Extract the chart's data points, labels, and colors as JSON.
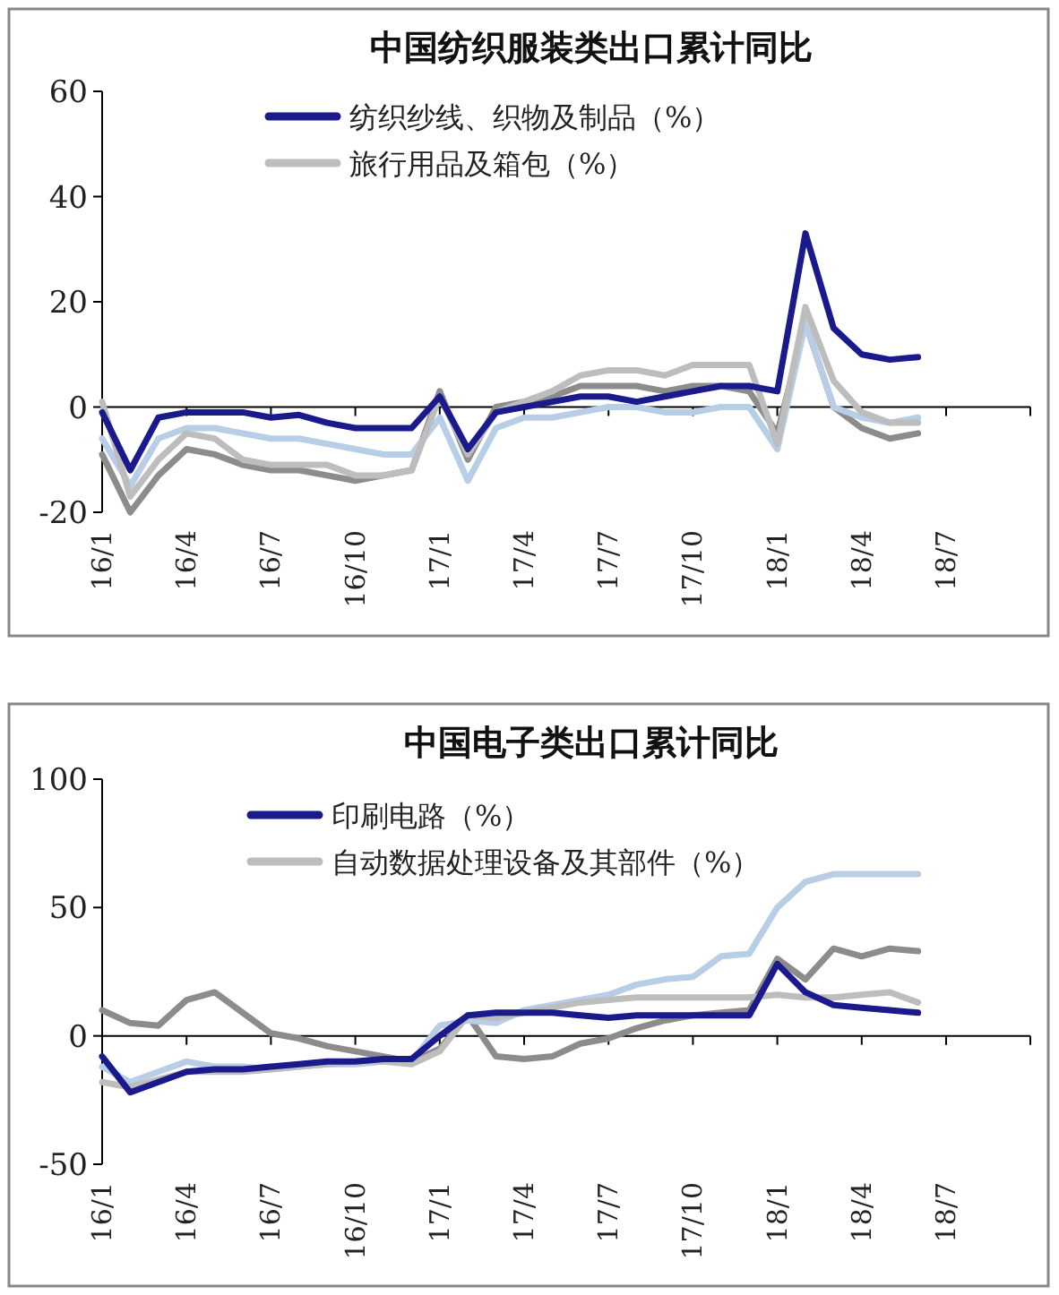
{
  "chart_data": [
    {
      "type": "line",
      "title": "中国纺织服装类出口累计同比",
      "categories": [
        "16/1",
        null,
        null,
        "16/4",
        null,
        null,
        "16/7",
        null,
        null,
        "16/10",
        null,
        null,
        "17/1",
        null,
        null,
        "17/4",
        null,
        null,
        "17/7",
        null,
        null,
        "17/10",
        null,
        null,
        "18/1",
        null,
        null,
        "18/4",
        null,
        null,
        "18/7"
      ],
      "ylim": [
        -20,
        60
      ],
      "yticks": [
        -20,
        0,
        20,
        40,
        60
      ],
      "legend": "top",
      "marker": "none",
      "line_style": "solid",
      "series": [
        {
          "name": "纺织纱线、织物及制品（%）",
          "color": "#1a1a8c",
          "values": [
            -1,
            -12,
            -2,
            -1,
            -1,
            -1,
            -2,
            -1.5,
            -3,
            -4,
            -4,
            -4,
            2,
            -8,
            -1,
            0,
            1,
            2,
            2,
            1,
            2,
            3,
            4,
            4,
            3,
            33,
            15,
            10,
            9,
            9.5,
            null
          ]
        },
        {
          "name": "旅行用品及箱包（%）",
          "color": "#bdbdbd",
          "values": [
            1,
            -17,
            -10,
            -5,
            -6,
            -10,
            -11,
            -11,
            -11,
            -13,
            -13,
            -12,
            2,
            -9,
            -1,
            1,
            3,
            6,
            7,
            7,
            6,
            8,
            8,
            8,
            -7,
            19,
            5,
            -1,
            -3,
            -3,
            null
          ]
        },
        {
          "color": "#b8cde6",
          "values": [
            -6,
            -15,
            -6,
            -4,
            -4,
            -5,
            -6,
            -6,
            -7,
            -8,
            -9,
            -9,
            -2,
            -14,
            -4,
            -2,
            -2,
            -1,
            0,
            0,
            -1,
            -1,
            0,
            0,
            -8,
            16,
            0,
            -2,
            -3,
            -2,
            null
          ]
        },
        {
          "color": "#8c8c8c",
          "values": [
            -9,
            -20,
            -13,
            -8,
            -9,
            -11,
            -12,
            -12,
            -13,
            -14,
            -13,
            -12,
            3,
            -10,
            0,
            1,
            2,
            4,
            4,
            4,
            3,
            4,
            4,
            3,
            -5,
            16,
            0,
            -4,
            -6,
            -5,
            null
          ]
        }
      ]
    },
    {
      "type": "line",
      "title": "中国电子类出口累计同比",
      "categories": [
        "16/1",
        null,
        null,
        "16/4",
        null,
        null,
        "16/7",
        null,
        null,
        "16/10",
        null,
        null,
        "17/1",
        null,
        null,
        "17/4",
        null,
        null,
        "17/7",
        null,
        null,
        "17/10",
        null,
        null,
        "18/1",
        null,
        null,
        "18/4",
        null,
        null,
        "18/7"
      ],
      "ylim": [
        -50,
        100
      ],
      "yticks": [
        -50,
        0,
        50,
        100
      ],
      "legend": "top",
      "marker": "none",
      "line_style": "solid",
      "series": [
        {
          "name": "印刷电路（%）",
          "color": "#1a1a8c",
          "values": [
            -8,
            -22,
            -18,
            -14,
            -13,
            -13,
            -12,
            -11,
            -10,
            -10,
            -9,
            -9,
            0,
            8,
            9,
            9,
            9,
            8,
            7,
            8,
            8,
            8,
            8,
            8,
            28,
            17,
            12,
            11,
            10,
            9,
            null
          ]
        },
        {
          "name": "自动数据处理设备及其部件（%）",
          "color": "#bdbdbd",
          "values": [
            -18,
            -20,
            -17,
            -14,
            -14,
            -14,
            -13,
            -12,
            -11,
            -10,
            -10,
            -11,
            -6,
            8,
            7,
            9,
            11,
            13,
            14,
            15,
            15,
            15,
            15,
            15,
            16,
            15,
            15,
            16,
            17,
            13,
            null
          ]
        },
        {
          "color": "#b8cde6",
          "values": [
            -12,
            -18,
            -14,
            -10,
            -12,
            -12,
            -13,
            -12,
            -11,
            -11,
            -10,
            -10,
            4,
            6,
            5,
            10,
            12,
            14,
            16,
            20,
            22,
            23,
            31,
            32,
            50,
            60,
            63,
            63,
            63,
            63,
            null
          ]
        },
        {
          "color": "#8c8c8c",
          "values": [
            10,
            5,
            4,
            14,
            17,
            9,
            1,
            -1,
            -4,
            -6,
            -8,
            -10,
            -5,
            8,
            -8,
            -9,
            -8,
            -3,
            -1,
            3,
            6,
            8,
            9,
            10,
            30,
            22,
            34,
            31,
            34,
            33,
            null
          ]
        }
      ]
    }
  ]
}
